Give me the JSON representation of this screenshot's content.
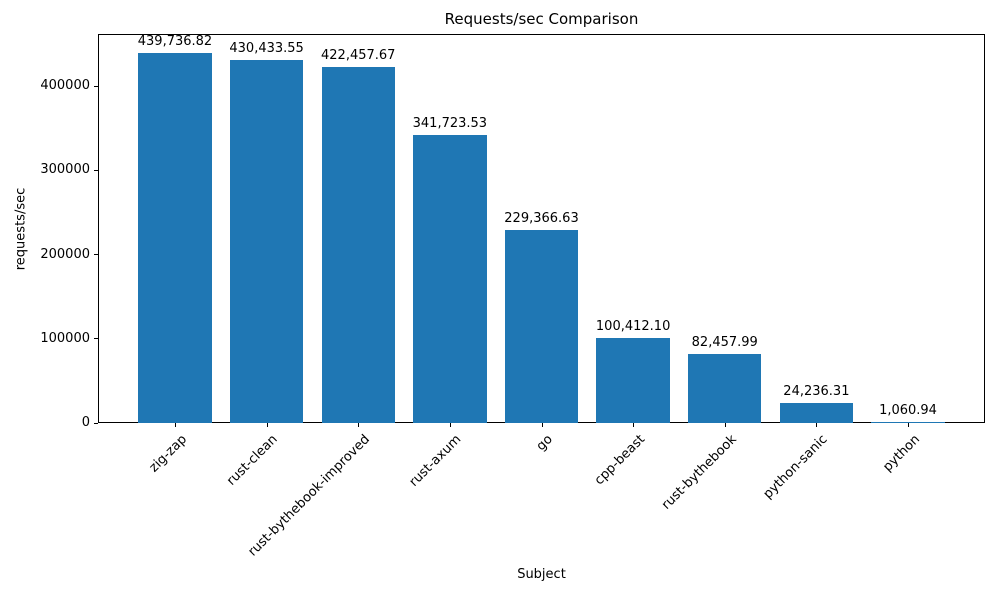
{
  "chart_data": {
    "type": "bar",
    "title": "Requests/sec Comparison",
    "xlabel": "Subject",
    "ylabel": "requests/sec",
    "categories": [
      "zig-zap",
      "rust-clean",
      "rust-bythebook-improved",
      "rust-axum",
      "go",
      "cpp-beast",
      "rust-bythebook",
      "python-sanic",
      "python"
    ],
    "values": [
      439736.82,
      430433.55,
      422457.67,
      341723.53,
      229366.63,
      100412.1,
      82457.99,
      24236.31,
      1060.94
    ],
    "value_labels": [
      "439,736.82",
      "430,433.55",
      "422,457.67",
      "341,723.53",
      "229,366.63",
      "100,412.10",
      "82,457.99",
      "24,236.31",
      "1,060.94"
    ],
    "yticks": [
      0,
      100000,
      200000,
      300000,
      400000
    ],
    "ytick_labels": [
      "0",
      "100000",
      "200000",
      "300000",
      "400000"
    ],
    "ylim": [
      0,
      461723.66
    ],
    "bar_color": "#1f77b4",
    "bar_width_ratio": 0.8,
    "grid": false,
    "legend_position": "none"
  }
}
